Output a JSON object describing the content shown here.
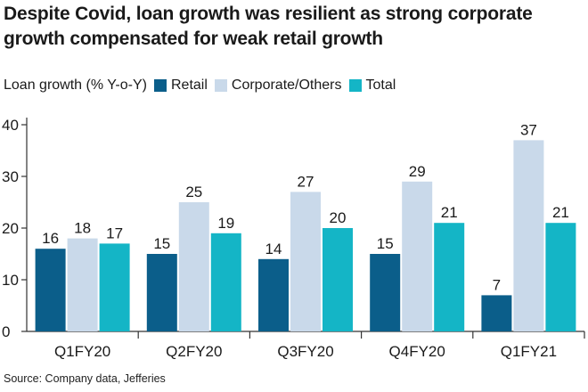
{
  "title_line1": "Despite Covid, loan growth was resilient as strong corporate",
  "title_line2": "growth compensated for weak retail growth",
  "legend": {
    "label": "Loan growth (% Y-o-Y)",
    "items": [
      {
        "name": "Retail",
        "color": "#0b5e8a"
      },
      {
        "name": "Corporate/Others",
        "color": "#c9d9ea"
      },
      {
        "name": "Total",
        "color": "#14b5c6"
      }
    ]
  },
  "source": "Source: Company data, Jefferies",
  "chart_data": {
    "type": "bar",
    "title": "Despite Covid, loan growth was resilient as strong corporate growth compensated for weak retail growth",
    "ylabel": "Loan growth (% Y-o-Y)",
    "xlabel": "",
    "categories": [
      "Q1FY20",
      "Q2FY20",
      "Q3FY20",
      "Q4FY20",
      "Q1FY21"
    ],
    "series": [
      {
        "name": "Retail",
        "color": "#0b5e8a",
        "values": [
          16,
          15,
          14,
          15,
          7
        ],
        "labels": [
          "16",
          "15",
          "14",
          "15",
          "7"
        ]
      },
      {
        "name": "Corporate/Others",
        "color": "#c9d9ea",
        "values": [
          18,
          25,
          27,
          29,
          37
        ],
        "labels": [
          "18",
          "25",
          "27",
          "29",
          "37"
        ]
      },
      {
        "name": "Total",
        "color": "#14b5c6",
        "values": [
          17,
          19,
          20,
          21,
          21
        ],
        "labels": [
          "17",
          "19",
          "20",
          "21",
          "21"
        ]
      }
    ],
    "ylim": [
      0,
      40
    ],
    "yticks": [
      0,
      10,
      20,
      30,
      40
    ],
    "ytick_labels": [
      "0",
      "10",
      "20",
      "30",
      "40"
    ],
    "grid": false,
    "legend_position": "top-left"
  }
}
